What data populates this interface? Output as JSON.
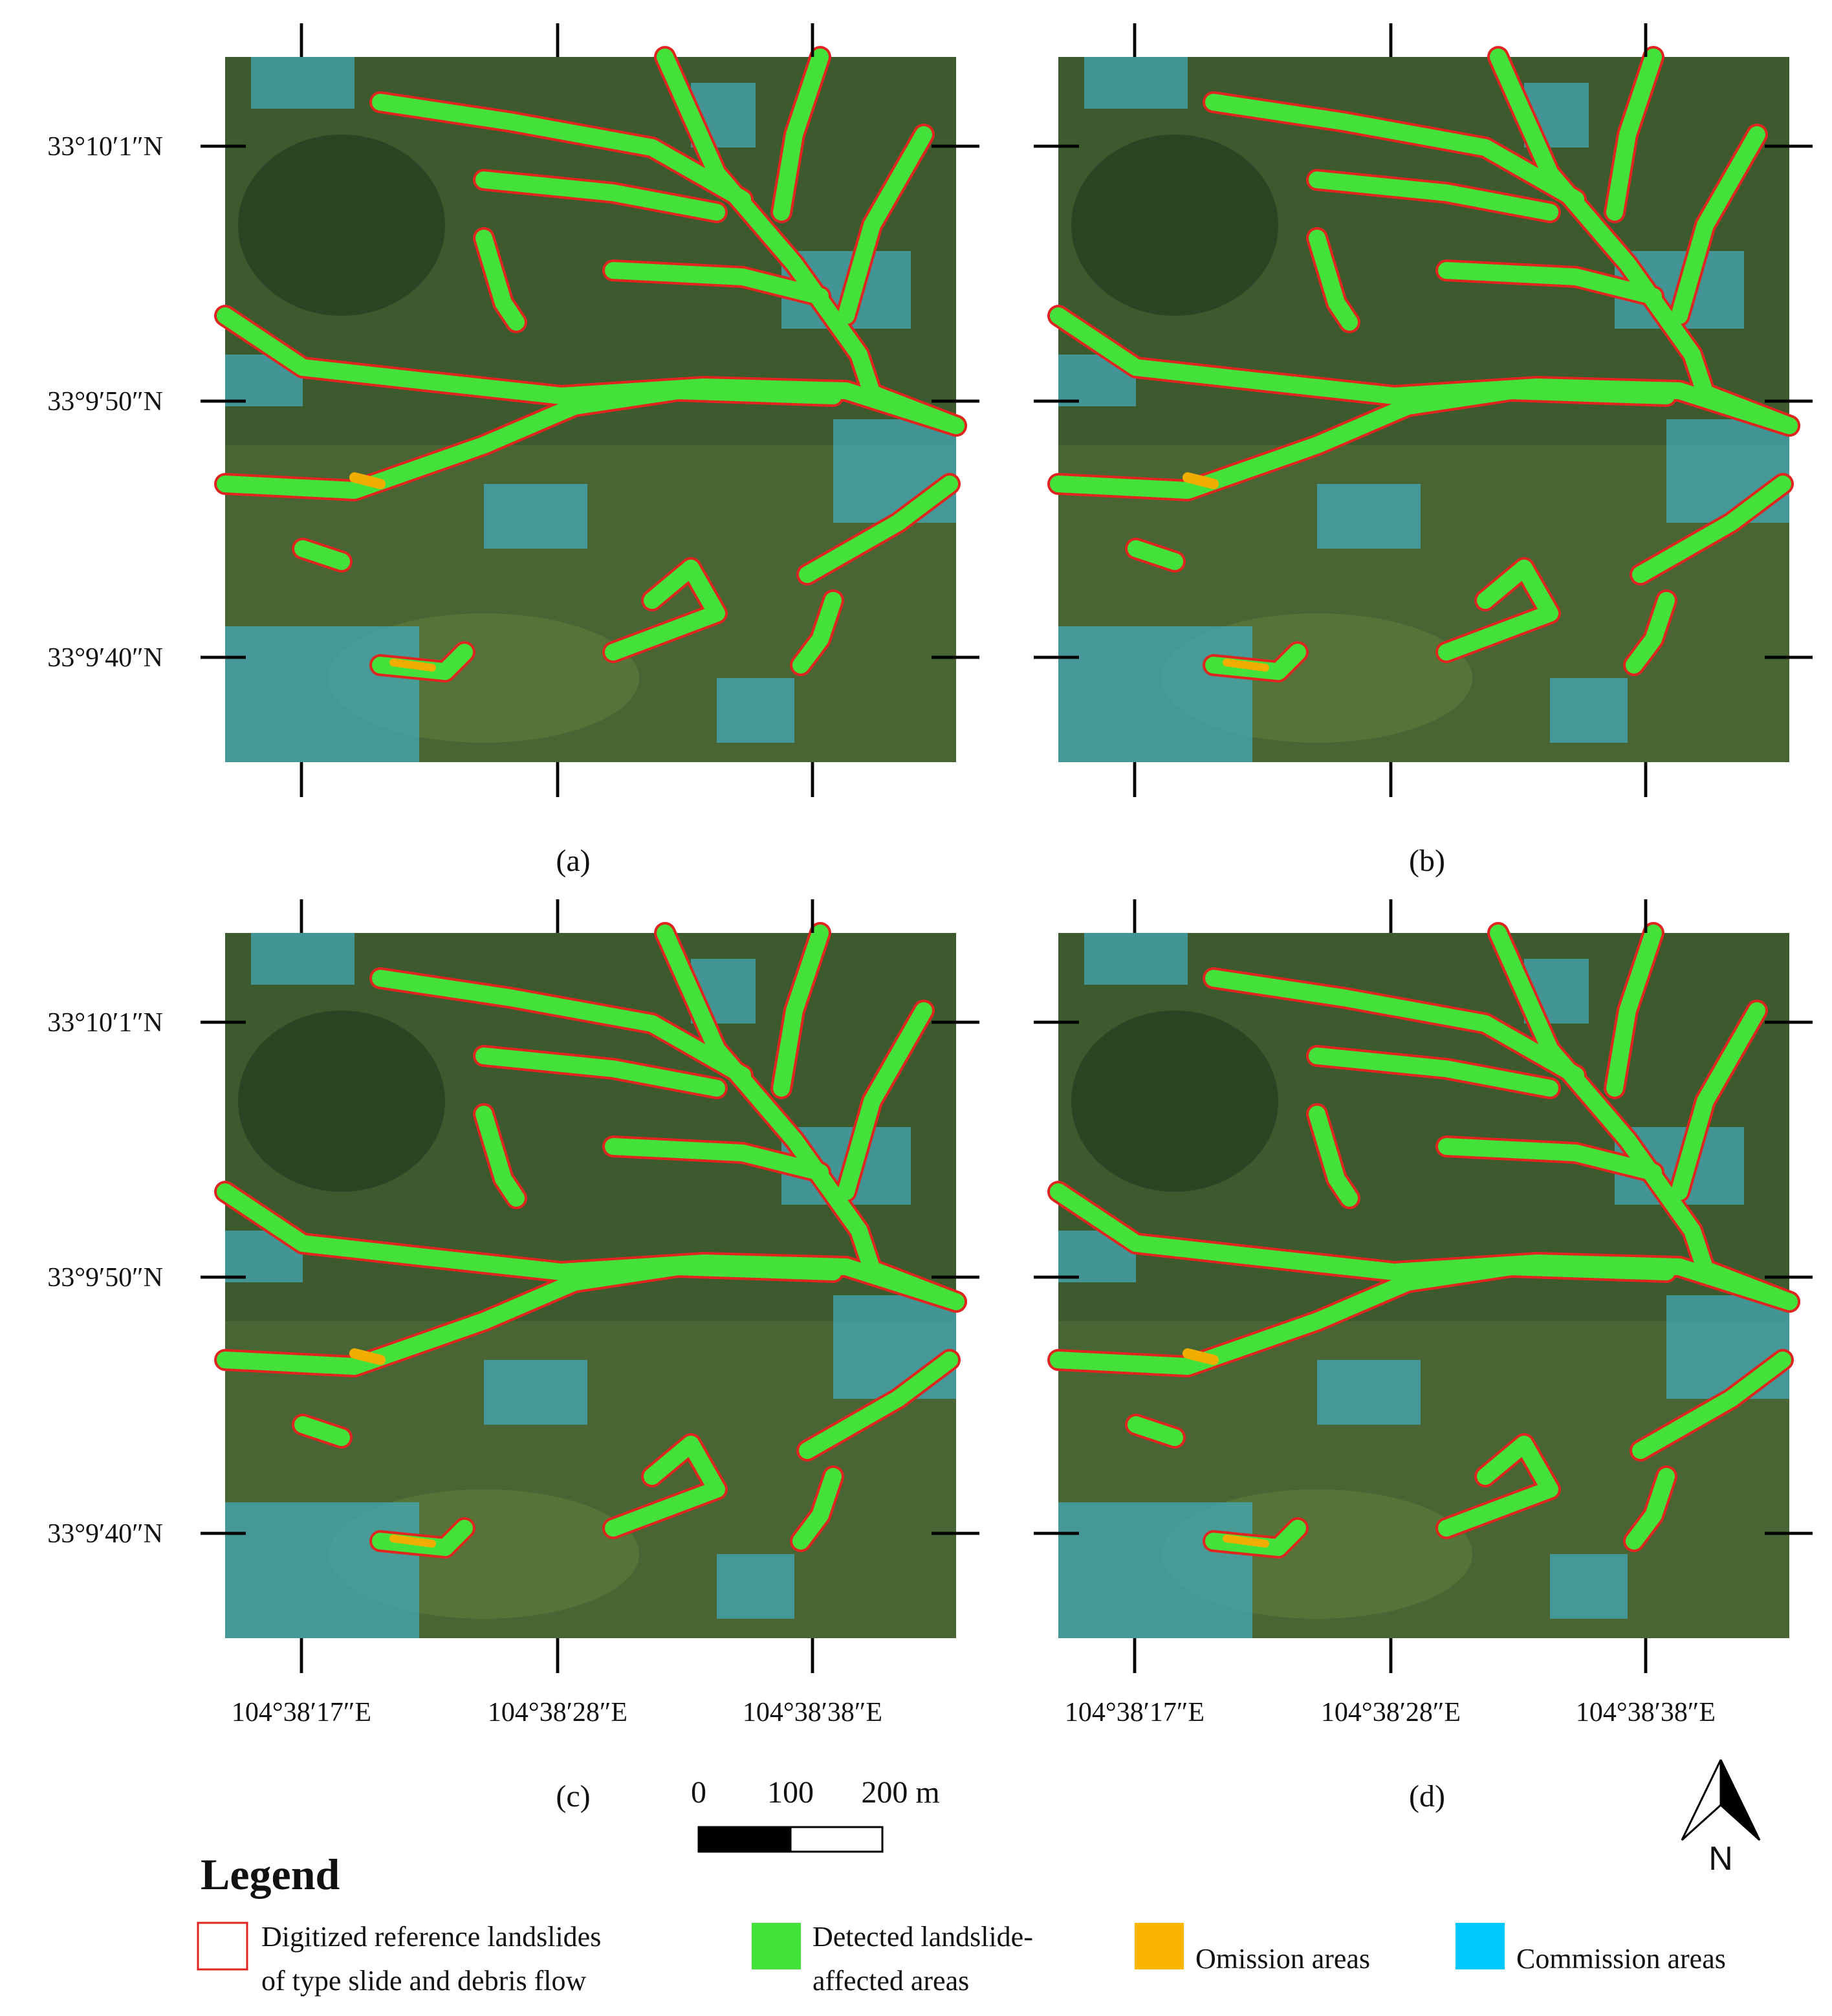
{
  "panels": [
    {
      "label": "(a)"
    },
    {
      "label": "(b)"
    },
    {
      "label": "(c)"
    },
    {
      "label": "(d)"
    }
  ],
  "lat_labels": [
    "33°10′1″N",
    "33°9′50″N",
    "33°9′40″N"
  ],
  "lon_labels": [
    "104°38′17″E",
    "104°38′28″E",
    "104°38′38″E"
  ],
  "scale_bar": {
    "labels": [
      "0",
      "100",
      "200 m"
    ]
  },
  "north_arrow": {
    "label": "N"
  },
  "legend": {
    "title": "Legend",
    "items": [
      {
        "lines": [
          "Digitized reference landslides",
          "of type slide and debris flow"
        ]
      },
      {
        "lines": [
          "Detected landslide-",
          "affected areas"
        ]
      },
      {
        "lines": [
          "Omission areas"
        ]
      },
      {
        "lines": [
          "Commission areas"
        ]
      }
    ]
  }
}
